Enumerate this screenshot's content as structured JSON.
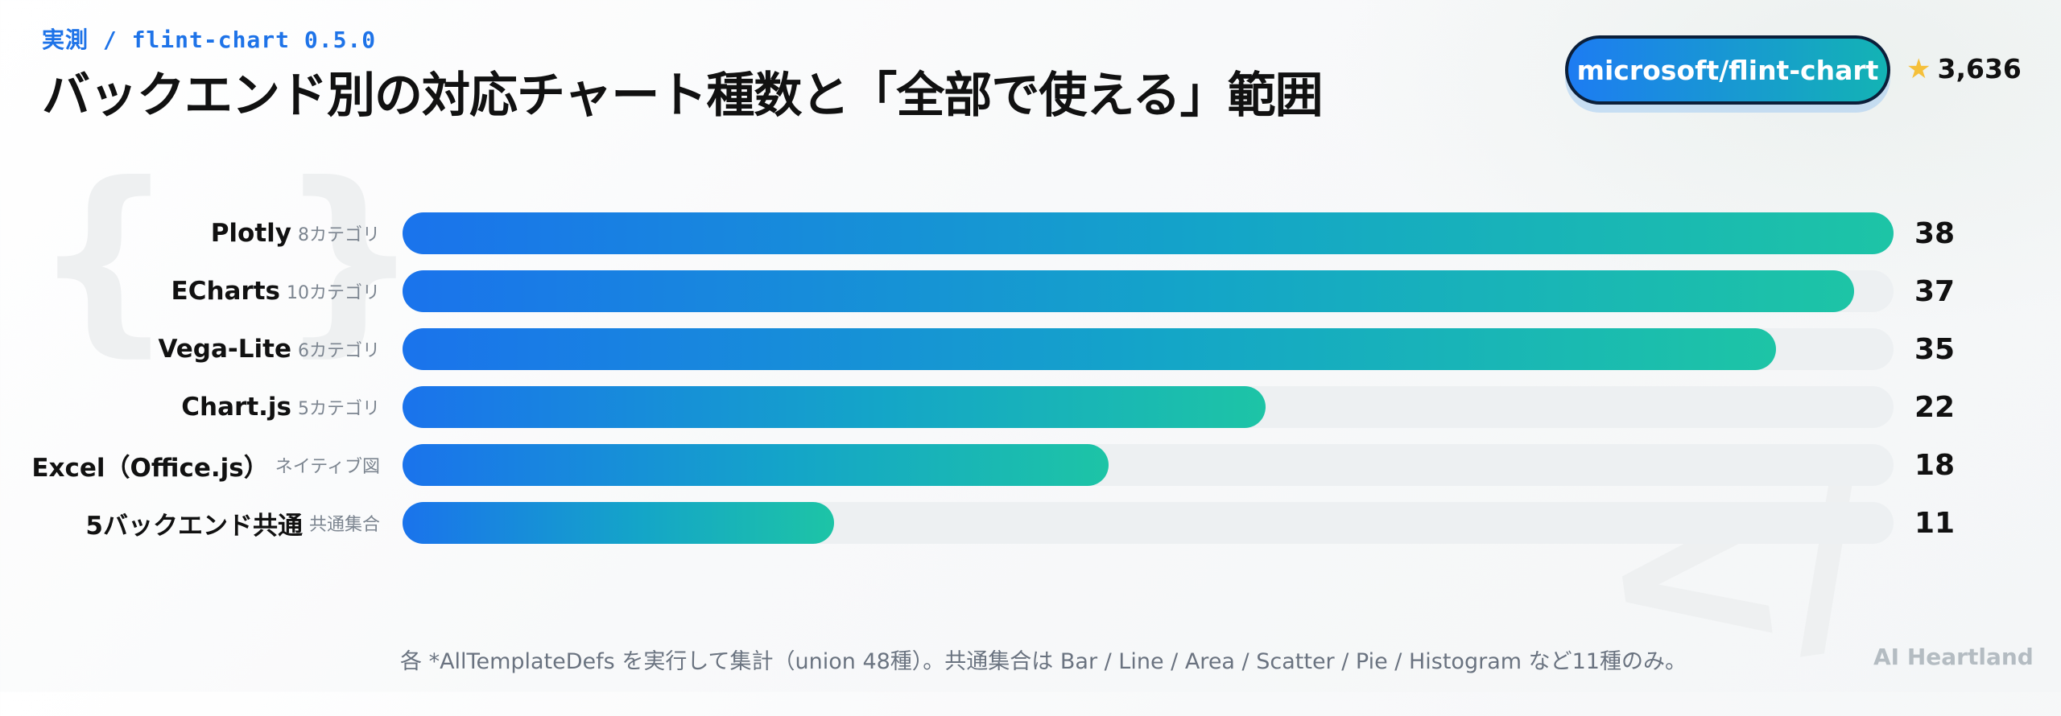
{
  "header": {
    "eyebrow": "実測 / flint-chart 0.5.0",
    "title": "バックエンド別の対応チャート種数と「全部で使える」範囲",
    "repo": "microsoft/flint-chart",
    "star_icon": "star-icon",
    "stars": "3,636"
  },
  "chart_data": {
    "type": "bar",
    "orientation": "horizontal",
    "title": "バックエンド別の対応チャート種数と「全部で使える」範囲",
    "xlim": [
      0,
      38
    ],
    "grid": false,
    "categories": [
      "Plotly",
      "ECharts",
      "Vega-Lite",
      "Chart.js",
      "Excel（Office.js）",
      "5バックエンド共通"
    ],
    "sublabels": [
      "8カテゴリ",
      "10カテゴリ",
      "6カテゴリ",
      "5カテゴリ",
      "ネイティブ図",
      "共通集合"
    ],
    "values": [
      38,
      37,
      35,
      22,
      18,
      11
    ],
    "colors": {
      "gradient_start": "#1a73ec",
      "gradient_end": "#1dc4a6",
      "track": "#edf0f2"
    }
  },
  "footer": {
    "note": "各 *AllTemplateDefs を実行して集計（union 48種）。共通集合は Bar / Line / Area / Scatter / Pie / Histogram など11種のみ。",
    "brand": "AI Heartland"
  }
}
